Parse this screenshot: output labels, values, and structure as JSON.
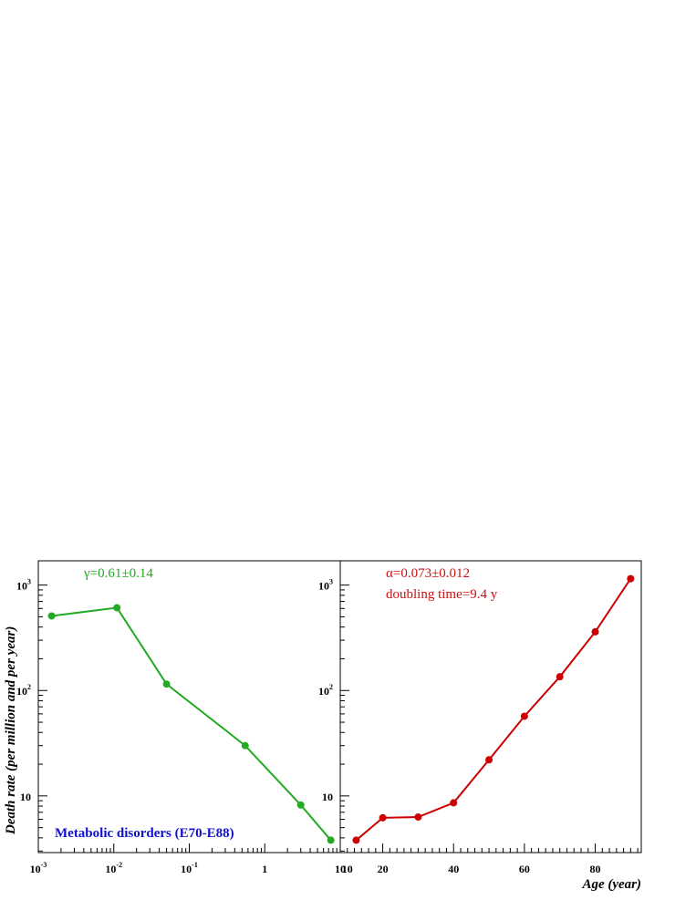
{
  "chart_data": [
    {
      "type": "line",
      "x_scale": "log",
      "y_scale": "log",
      "xlim": [
        0.001,
        10
      ],
      "ylim": [
        2.9,
        1700
      ],
      "x_tick_labels": [
        {
          "value": 0.001,
          "base": "10",
          "exp": "-3"
        },
        {
          "value": 0.01,
          "base": "10",
          "exp": "-2"
        },
        {
          "value": 0.1,
          "base": "10",
          "exp": "-1"
        },
        {
          "value": 1,
          "base": "1",
          "exp": ""
        },
        {
          "value": 10,
          "base": "10",
          "exp": ""
        }
      ],
      "y_tick_labels": [
        {
          "value": 10,
          "base": "10",
          "exp": ""
        },
        {
          "value": 100,
          "base": "10",
          "exp": "2"
        },
        {
          "value": 1000,
          "base": "10",
          "exp": "3"
        }
      ],
      "ylabel": "Death rate (per million and per year)",
      "annotation": "γ=0.61±0.14",
      "annotation_color": "#22aa22",
      "caption": "Metabolic disorders (E70-E88)",
      "caption_color": "#1010d0",
      "series": [
        {
          "color": "#22aa22",
          "x": [
            0.0015,
            0.011,
            0.05,
            0.55,
            3.0,
            7.5
          ],
          "y": [
            510,
            610,
            115,
            30,
            8.2,
            3.8
          ]
        }
      ]
    },
    {
      "type": "line",
      "x_scale": "linear",
      "y_scale": "log",
      "xlim": [
        8,
        93
      ],
      "ylim": [
        2.9,
        1700
      ],
      "x_tick_labels": [
        {
          "value": 10,
          "base": "10",
          "exp": ""
        },
        {
          "value": 20,
          "base": "20",
          "exp": ""
        },
        {
          "value": 40,
          "base": "40",
          "exp": ""
        },
        {
          "value": 60,
          "base": "60",
          "exp": ""
        },
        {
          "value": 80,
          "base": "80",
          "exp": ""
        }
      ],
      "y_tick_labels": [
        {
          "value": 10,
          "base": "10",
          "exp": ""
        },
        {
          "value": 100,
          "base": "10",
          "exp": "2"
        },
        {
          "value": 1000,
          "base": "10",
          "exp": "3"
        }
      ],
      "xlabel": "Age (year)",
      "annotation": "α=0.073±0.012",
      "annotation2": "doubling time=9.4 y",
      "annotation_color": "#cc1111",
      "series": [
        {
          "color": "#cc0000",
          "x": [
            12.5,
            20,
            30,
            40,
            50,
            60,
            70,
            80,
            90
          ],
          "y": [
            3.8,
            6.2,
            6.3,
            8.6,
            22,
            57,
            135,
            360,
            1150
          ]
        }
      ]
    }
  ]
}
